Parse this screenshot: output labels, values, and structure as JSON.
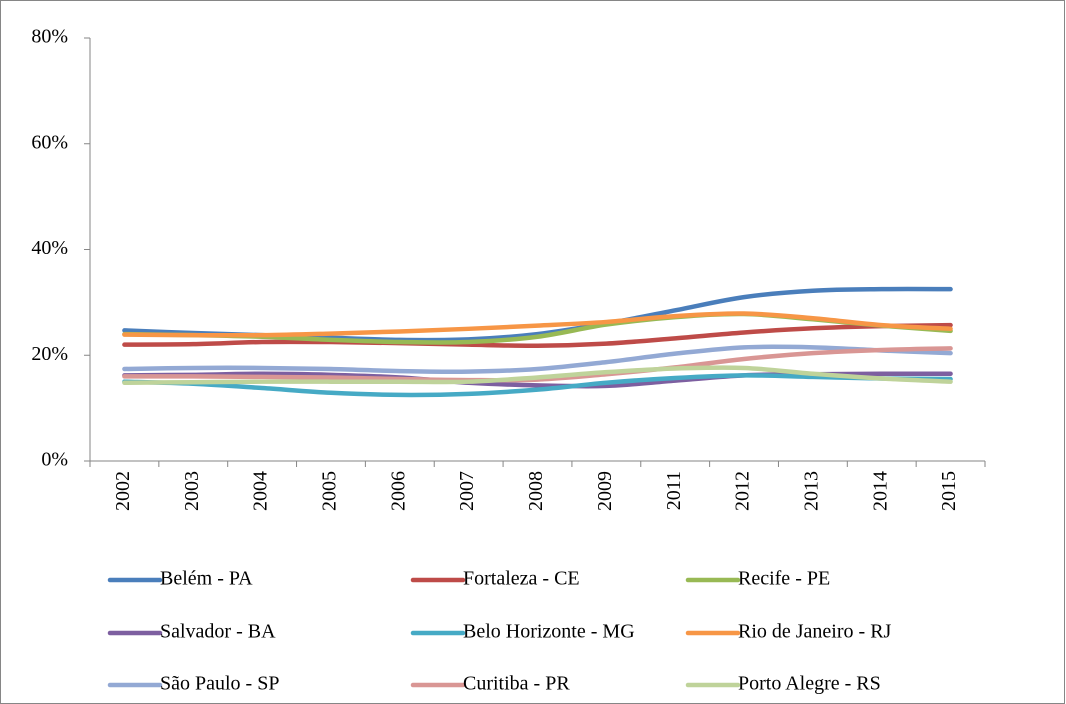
{
  "chart_data": {
    "type": "line",
    "categories": [
      "2002",
      "2003",
      "2004",
      "2005",
      "2006",
      "2007",
      "2008",
      "2009",
      "2011",
      "2012",
      "2013",
      "2014",
      "2015"
    ],
    "ylim": [
      0,
      80
    ],
    "yticks": [
      {
        "value": 0,
        "label": "0%"
      },
      {
        "value": 20,
        "label": "20%"
      },
      {
        "value": 40,
        "label": "40%"
      },
      {
        "value": 60,
        "label": "60%"
      },
      {
        "value": 80,
        "label": "80%"
      }
    ],
    "series": [
      {
        "name": "Belém - PA",
        "color": "#4a7ebb",
        "values": [
          24.7,
          24.2,
          23.8,
          23.3,
          22.9,
          23.0,
          24.0,
          26.0,
          28.5,
          31.0,
          32.2,
          32.5,
          32.5
        ]
      },
      {
        "name": "Fortaleza - CE",
        "color": "#be4b48",
        "values": [
          22.0,
          22.1,
          22.5,
          22.5,
          22.3,
          22.0,
          21.8,
          22.2,
          23.2,
          24.3,
          25.1,
          25.5,
          25.7
        ]
      },
      {
        "name": "Recife - PE",
        "color": "#98b954",
        "values": [
          24.0,
          23.8,
          23.5,
          22.9,
          22.5,
          22.5,
          23.5,
          25.8,
          27.2,
          27.8,
          26.8,
          25.6,
          24.6
        ]
      },
      {
        "name": "Salvador - BA",
        "color": "#7d5fa0",
        "values": [
          16.2,
          16.3,
          16.5,
          16.3,
          15.8,
          14.8,
          14.3,
          14.2,
          15.2,
          16.2,
          16.4,
          16.5,
          16.5
        ]
      },
      {
        "name": "Belo Horizonte - MG",
        "color": "#46aac5",
        "values": [
          15.0,
          14.6,
          13.8,
          12.9,
          12.5,
          12.7,
          13.5,
          14.8,
          15.7,
          16.2,
          15.9,
          15.6,
          15.5
        ]
      },
      {
        "name": "Rio de Janeiro - RJ",
        "color": "#f79646",
        "values": [
          23.9,
          23.8,
          23.8,
          24.1,
          24.5,
          25.0,
          25.6,
          26.3,
          27.4,
          27.9,
          27.0,
          25.7,
          25.0
        ]
      },
      {
        "name": "São Paulo - SP",
        "color": "#93a9d4",
        "values": [
          17.4,
          17.6,
          17.6,
          17.4,
          17.0,
          16.9,
          17.4,
          18.7,
          20.3,
          21.5,
          21.5,
          20.9,
          20.4
        ]
      },
      {
        "name": "Curitiba - PR",
        "color": "#d99694",
        "values": [
          16.0,
          16.0,
          15.9,
          15.8,
          15.5,
          15.3,
          15.4,
          16.4,
          17.7,
          19.3,
          20.4,
          21.0,
          21.3
        ]
      },
      {
        "name": "Porto Alegre - RS",
        "color": "#bfd39a",
        "values": [
          14.8,
          14.9,
          15.0,
          15.0,
          15.0,
          15.0,
          15.8,
          16.8,
          17.5,
          17.6,
          16.5,
          15.6,
          15.0
        ]
      }
    ]
  }
}
